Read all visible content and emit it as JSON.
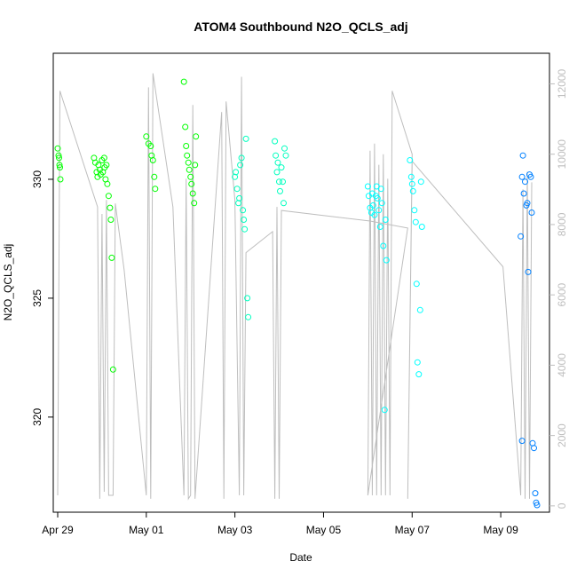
{
  "chart_data": {
    "type": "scatter",
    "title": "ATOM4 Southbound N2O_QCLS_adj",
    "xlabel": "Date",
    "ylabel": "N2O_QCLS_adj",
    "xlim": [
      -0.1,
      11.1
    ],
    "ylim": [
      316.0,
      335.3
    ],
    "x_ticks": [
      {
        "value": 0,
        "label": "Apr 29"
      },
      {
        "value": 2,
        "label": "May 01"
      },
      {
        "value": 4,
        "label": "May 03"
      },
      {
        "value": 6,
        "label": "May 05"
      },
      {
        "value": 8,
        "label": "May 07"
      },
      {
        "value": 10,
        "label": "May 09"
      }
    ],
    "y_ticks": [
      320,
      325,
      330
    ],
    "y2_ticks": [
      0,
      2000,
      4000,
      6000,
      8000,
      10000,
      12000
    ],
    "y2lim": [
      -180,
      12870
    ],
    "altitude_color": "#bebebe",
    "altitude_path": [
      [
        0.0,
        300
      ],
      [
        0.05,
        11800
      ],
      [
        0.9,
        8500
      ],
      [
        0.95,
        200
      ],
      [
        1.0,
        8300
      ],
      [
        1.05,
        400
      ],
      [
        1.1,
        8700
      ],
      [
        1.15,
        300
      ],
      [
        1.25,
        300
      ],
      [
        1.3,
        8600
      ],
      [
        1.5,
        6700
      ],
      [
        2.0,
        300
      ],
      [
        2.05,
        11900
      ],
      [
        2.1,
        200
      ],
      [
        2.15,
        12300
      ],
      [
        2.6,
        8500
      ],
      [
        2.85,
        300
      ],
      [
        2.9,
        9300
      ],
      [
        2.95,
        200
      ],
      [
        3.0,
        300
      ],
      [
        3.05,
        11400
      ],
      [
        3.1,
        200
      ],
      [
        3.7,
        11200
      ],
      [
        3.75,
        200
      ],
      [
        3.8,
        11500
      ],
      [
        4.0,
        8700
      ],
      [
        4.1,
        300
      ],
      [
        4.15,
        12200
      ],
      [
        4.2,
        300
      ],
      [
        4.25,
        7200
      ],
      [
        4.85,
        7800
      ],
      [
        4.9,
        200
      ],
      [
        4.95,
        8500
      ],
      [
        5.0,
        200
      ],
      [
        5.05,
        8400
      ],
      [
        7.05,
        8100
      ],
      [
        7.9,
        7900
      ],
      [
        7.0,
        300
      ],
      [
        7.05,
        10100
      ],
      [
        7.1,
        300
      ],
      [
        7.15,
        10300
      ],
      [
        7.2,
        300
      ],
      [
        7.25,
        9700
      ],
      [
        7.3,
        300
      ],
      [
        7.35,
        10000
      ],
      [
        7.4,
        300
      ],
      [
        7.45,
        9300
      ],
      [
        7.5,
        300
      ],
      [
        7.55,
        11800
      ],
      [
        8.0,
        10000
      ],
      [
        7.9,
        200
      ],
      [
        8.0,
        9800
      ],
      [
        10.05,
        6800
      ],
      [
        10.45,
        300
      ],
      [
        10.5,
        9000
      ],
      [
        10.55,
        200
      ],
      [
        10.6,
        9500
      ],
      [
        10.65,
        200
      ],
      [
        10.7,
        9200
      ]
    ],
    "series": [
      {
        "name": "",
        "color": "#00ff00",
        "points": [
          [
            0.0,
            331.3
          ],
          [
            0.02,
            331.0
          ],
          [
            0.03,
            330.9
          ],
          [
            0.04,
            330.6
          ],
          [
            0.05,
            330.5
          ],
          [
            0.06,
            330.0
          ],
          [
            0.82,
            330.9
          ],
          [
            0.85,
            330.7
          ],
          [
            0.88,
            330.3
          ],
          [
            0.9,
            330.1
          ],
          [
            0.92,
            330.6
          ],
          [
            0.95,
            330.4
          ],
          [
            0.97,
            330.2
          ],
          [
            1.0,
            330.8
          ],
          [
            1.02,
            330.3
          ],
          [
            1.05,
            330.9
          ],
          [
            1.06,
            330.5
          ],
          [
            1.08,
            330.0
          ],
          [
            1.1,
            330.6
          ],
          [
            1.12,
            329.8
          ],
          [
            1.15,
            329.3
          ],
          [
            1.18,
            328.8
          ],
          [
            1.2,
            328.3
          ],
          [
            1.22,
            326.7
          ],
          [
            1.25,
            322.0
          ],
          [
            2.0,
            331.8
          ],
          [
            2.05,
            331.5
          ],
          [
            2.1,
            331.4
          ],
          [
            2.12,
            331.0
          ],
          [
            2.15,
            330.8
          ],
          [
            2.18,
            330.1
          ],
          [
            2.2,
            329.6
          ],
          [
            2.85,
            334.1
          ],
          [
            2.88,
            332.2
          ],
          [
            2.9,
            331.4
          ],
          [
            2.92,
            331.0
          ],
          [
            2.95,
            330.7
          ],
          [
            2.97,
            330.4
          ],
          [
            3.0,
            330.1
          ],
          [
            3.02,
            329.8
          ],
          [
            3.05,
            329.4
          ],
          [
            3.08,
            329.0
          ],
          [
            3.1,
            330.6
          ],
          [
            3.12,
            331.8
          ]
        ]
      },
      {
        "name": "",
        "color": "#00ffbf",
        "points": [
          [
            4.0,
            330.1
          ],
          [
            4.02,
            330.3
          ],
          [
            4.05,
            329.6
          ],
          [
            4.08,
            329.0
          ],
          [
            4.1,
            329.2
          ],
          [
            4.12,
            330.6
          ],
          [
            4.15,
            330.9
          ],
          [
            4.18,
            328.7
          ],
          [
            4.2,
            328.3
          ],
          [
            4.22,
            327.9
          ],
          [
            4.25,
            331.7
          ],
          [
            4.28,
            325.0
          ],
          [
            4.3,
            324.2
          ],
          [
            4.9,
            331.6
          ],
          [
            4.92,
            331.0
          ],
          [
            4.95,
            330.3
          ],
          [
            4.97,
            330.7
          ],
          [
            5.0,
            329.9
          ],
          [
            5.02,
            329.5
          ],
          [
            5.05,
            330.5
          ],
          [
            5.08,
            329.9
          ],
          [
            5.1,
            329.0
          ],
          [
            5.12,
            331.3
          ],
          [
            5.15,
            331.0
          ]
        ]
      },
      {
        "name": "",
        "color": "#00ffff",
        "points": [
          [
            7.0,
            329.7
          ],
          [
            7.02,
            329.3
          ],
          [
            7.05,
            328.8
          ],
          [
            7.08,
            328.6
          ],
          [
            7.1,
            329.4
          ],
          [
            7.12,
            328.9
          ],
          [
            7.15,
            328.5
          ],
          [
            7.18,
            329.3
          ],
          [
            7.2,
            329.7
          ],
          [
            7.22,
            329.2
          ],
          [
            7.25,
            328.7
          ],
          [
            7.28,
            328.0
          ],
          [
            7.3,
            329.6
          ],
          [
            7.32,
            329.0
          ],
          [
            7.35,
            327.2
          ],
          [
            7.38,
            320.3
          ],
          [
            7.4,
            328.3
          ],
          [
            7.42,
            326.6
          ],
          [
            7.95,
            330.8
          ],
          [
            7.98,
            330.1
          ],
          [
            8.0,
            329.8
          ],
          [
            8.02,
            329.5
          ],
          [
            8.05,
            328.7
          ],
          [
            8.08,
            328.2
          ],
          [
            8.1,
            325.6
          ],
          [
            8.12,
            322.3
          ],
          [
            8.15,
            321.8
          ],
          [
            8.18,
            324.5
          ],
          [
            8.2,
            329.9
          ],
          [
            8.22,
            328.0
          ]
        ]
      },
      {
        "name": "",
        "color": "#0080ff",
        "points": [
          [
            10.45,
            327.6
          ],
          [
            10.48,
            330.1
          ],
          [
            10.5,
            331.0
          ],
          [
            10.52,
            329.4
          ],
          [
            10.55,
            329.9
          ],
          [
            10.58,
            328.9
          ],
          [
            10.6,
            329.0
          ],
          [
            10.62,
            326.1
          ],
          [
            10.65,
            330.2
          ],
          [
            10.68,
            330.1
          ],
          [
            10.7,
            328.6
          ],
          [
            10.72,
            318.9
          ],
          [
            10.75,
            318.7
          ],
          [
            10.78,
            316.8
          ],
          [
            10.8,
            316.4
          ],
          [
            10.82,
            316.3
          ],
          [
            10.48,
            319.0
          ]
        ]
      }
    ]
  }
}
